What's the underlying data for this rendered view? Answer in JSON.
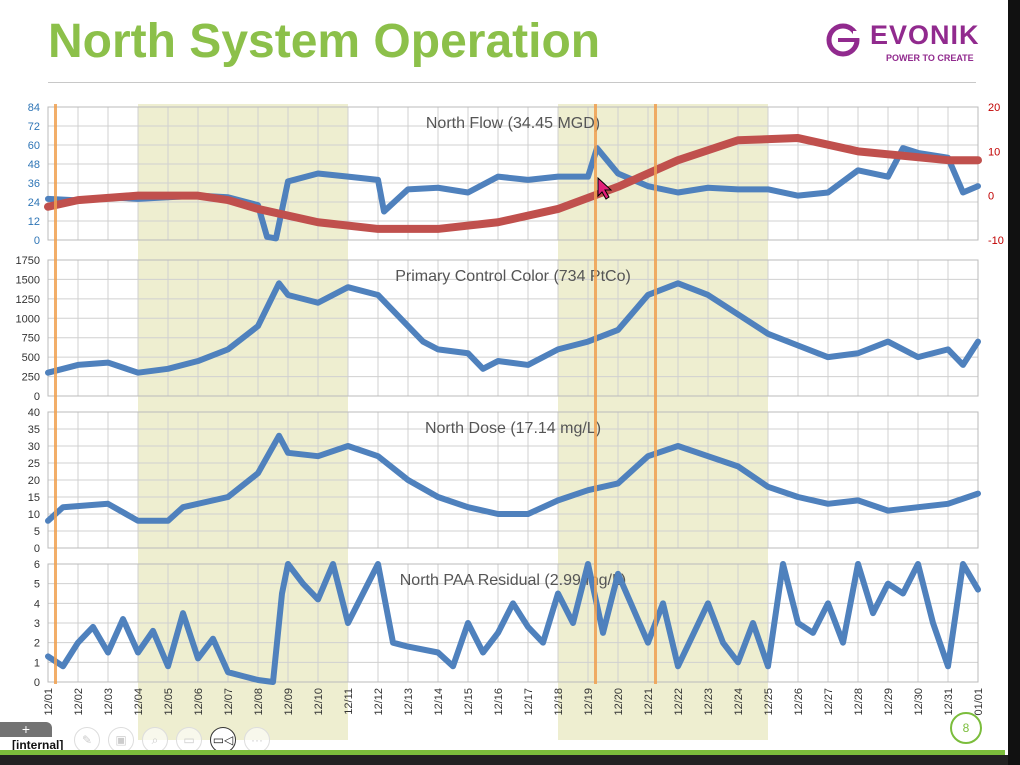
{
  "slide": {
    "title": "North System Operation",
    "page_number": "8",
    "classification": "[internal]"
  },
  "logo": {
    "name": "EVONIK",
    "tagline": "POWER TO CREATE"
  },
  "toolbar": {
    "icons": [
      "pen-icon",
      "slides-icon",
      "zoom-icon",
      "subtitles-icon",
      "camera-icon",
      "more-icon"
    ]
  },
  "colors": {
    "title": "#8cc04a",
    "series": "#4f81bd",
    "trend": "#c0504d",
    "shade": "#eeeed0",
    "marker_line": "#f0a050",
    "brand": "#912a8e"
  },
  "chart_data": [
    {
      "type": "line",
      "title": "North Flow (34.45 MGD)",
      "ylim": [
        0,
        84
      ],
      "yticks": [
        0,
        12,
        24,
        36,
        48,
        60,
        72,
        84
      ],
      "y2lim": [
        -10,
        20
      ],
      "y2ticks": [
        -10,
        0,
        10,
        20
      ],
      "series": [
        {
          "name": "Flow",
          "axis": "left",
          "x": [
            0,
            1,
            2,
            3,
            4,
            5,
            6,
            7,
            7.3,
            7.6,
            8,
            9,
            10,
            11,
            11.2,
            12,
            13,
            14,
            15,
            16,
            17,
            18,
            18.3,
            19,
            20,
            21,
            22,
            23,
            24,
            25,
            26,
            27,
            28,
            28.5,
            29,
            30,
            30.5,
            31
          ],
          "y": [
            26,
            25,
            27,
            26,
            27,
            28,
            27,
            22,
            2,
            1,
            37,
            42,
            40,
            38,
            18,
            32,
            33,
            30,
            40,
            38,
            40,
            40,
            58,
            42,
            34,
            30,
            33,
            32,
            32,
            28,
            30,
            44,
            40,
            58,
            55,
            52,
            30,
            34
          ]
        },
        {
          "name": "Trend",
          "axis": "right",
          "x": [
            0,
            1,
            3,
            5,
            6,
            7,
            9,
            11,
            13,
            15,
            17,
            19,
            21,
            23,
            25,
            27,
            28.5,
            30,
            31
          ],
          "y": [
            -2.5,
            -1,
            0,
            0,
            -1,
            -3,
            -6,
            -7.5,
            -7.5,
            -6,
            -3,
            2,
            8,
            12.5,
            13,
            10,
            9,
            8,
            8
          ]
        }
      ]
    },
    {
      "type": "line",
      "title": "Primary Control Color (734 PtCo)",
      "ylim": [
        0,
        1750
      ],
      "yticks": [
        0,
        250,
        500,
        750,
        1000,
        1250,
        1500,
        1750
      ],
      "series": [
        {
          "name": "Color",
          "x": [
            0,
            1,
            2,
            3,
            4,
            5,
            6,
            7,
            7.7,
            8,
            9,
            10,
            11,
            12,
            12.5,
            13,
            14,
            14.5,
            15,
            16,
            17,
            18,
            19,
            20,
            21,
            22,
            23,
            24,
            25,
            26,
            27,
            28,
            29,
            30,
            30.5,
            31
          ],
          "y": [
            300,
            400,
            430,
            300,
            350,
            450,
            600,
            900,
            1450,
            1300,
            1200,
            1400,
            1300,
            900,
            700,
            600,
            550,
            350,
            450,
            400,
            600,
            700,
            850,
            1300,
            1450,
            1300,
            1050,
            800,
            650,
            500,
            550,
            700,
            500,
            600,
            400,
            700
          ]
        }
      ]
    },
    {
      "type": "line",
      "title": "North Dose (17.14 mg/L)",
      "ylim": [
        0,
        40
      ],
      "yticks": [
        0,
        5,
        10,
        15,
        20,
        25,
        30,
        35,
        40
      ],
      "series": [
        {
          "name": "Dose",
          "x": [
            0,
            0.5,
            2,
            3,
            4,
            4.5,
            6,
            7,
            7.7,
            8,
            9,
            10,
            11,
            12,
            13,
            14,
            15,
            16,
            17,
            18,
            19,
            20,
            21,
            22,
            23,
            24,
            25,
            26,
            27,
            28,
            29,
            30,
            31
          ],
          "y": [
            8,
            12,
            13,
            8,
            8,
            12,
            15,
            22,
            33,
            28,
            27,
            30,
            27,
            20,
            15,
            12,
            10,
            10,
            14,
            17,
            19,
            27,
            30,
            27,
            24,
            18,
            15,
            13,
            14,
            11,
            12,
            13,
            16
          ]
        }
      ]
    },
    {
      "type": "line",
      "title": "North PAA Residual (2.99 mg/L)",
      "ylim": [
        0,
        6
      ],
      "yticks": [
        0,
        1,
        2,
        3,
        4,
        5,
        6
      ],
      "series": [
        {
          "name": "PAA",
          "x": [
            0,
            0.5,
            1,
            1.5,
            2,
            2.5,
            3,
            3.5,
            4,
            4.5,
            5,
            5.5,
            6,
            6.5,
            7,
            7.5,
            7.8,
            8,
            8.5,
            9,
            9.5,
            10,
            10.5,
            11,
            11.5,
            12,
            13,
            13.5,
            14,
            14.5,
            15,
            15.5,
            16,
            16.5,
            17,
            17.5,
            18,
            18.5,
            19,
            20,
            20.5,
            21,
            22,
            22.5,
            23,
            23.5,
            24,
            24.5,
            25,
            25.5,
            26,
            26.5,
            27,
            27.5,
            28,
            28.5,
            29,
            29.5,
            30,
            30.5,
            31
          ],
          "y": [
            1.3,
            0.8,
            2,
            2.8,
            1.5,
            3.2,
            1.5,
            2.6,
            0.8,
            3.5,
            1.2,
            2.2,
            0.5,
            0.3,
            0.1,
            0,
            4.5,
            6,
            5,
            4.2,
            6,
            3,
            4.5,
            6,
            2,
            1.8,
            1.5,
            0.8,
            3,
            1.5,
            2.5,
            4,
            2.8,
            2,
            4.5,
            3,
            6,
            2.5,
            5.5,
            2,
            4,
            0.8,
            4,
            2,
            1,
            3,
            0.8,
            6,
            3,
            2.5,
            4,
            2,
            6,
            3.5,
            5,
            4.5,
            6,
            3,
            0.8,
            6,
            4.7
          ]
        }
      ]
    }
  ],
  "x_axis": {
    "ticks": [
      "12/01",
      "12/02",
      "12/03",
      "12/04",
      "12/05",
      "12/06",
      "12/07",
      "12/08",
      "12/09",
      "12/10",
      "12/11",
      "12/12",
      "12/13",
      "12/14",
      "12/15",
      "12/16",
      "12/17",
      "12/18",
      "12/19",
      "12/20",
      "12/21",
      "12/22",
      "12/23",
      "12/24",
      "12/25",
      "12/26",
      "12/27",
      "12/28",
      "12/29",
      "12/30",
      "12/31",
      "01/01"
    ]
  },
  "shaded_periods": [
    [
      3,
      10
    ],
    [
      17,
      24
    ]
  ],
  "event_lines": [
    0.25,
    18.25,
    20.25
  ]
}
